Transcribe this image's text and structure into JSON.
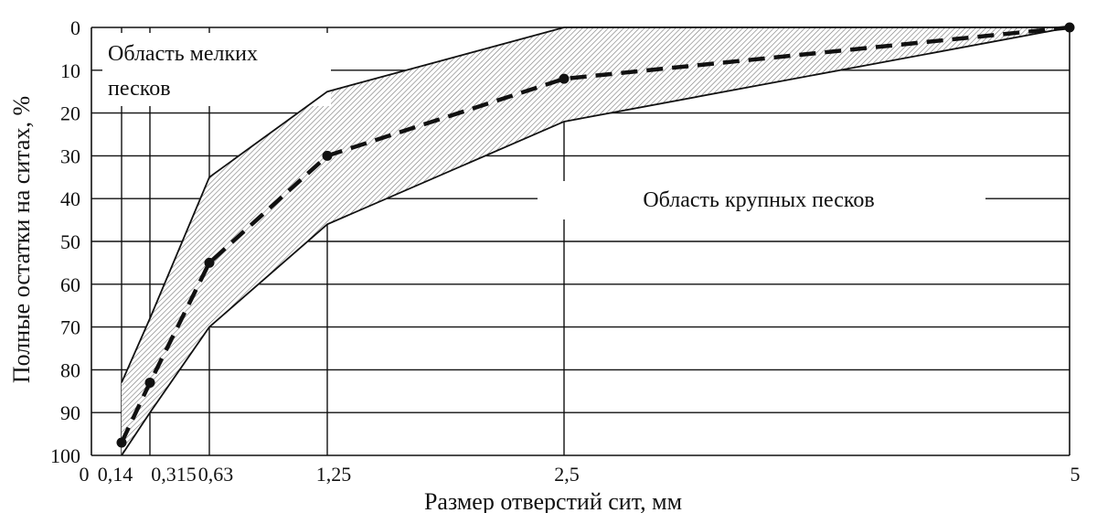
{
  "chart_data": {
    "type": "area",
    "title": "",
    "xlabel": "Размер отверстий сит, мм",
    "ylabel": "Полные остатки на ситах, %",
    "x_ticks": [
      "0",
      "0,14",
      "0,315",
      "0,63",
      "1,25",
      "2,5",
      "5"
    ],
    "y_ticks": [
      "0",
      "10",
      "20",
      "30",
      "40",
      "50",
      "60",
      "70",
      "80",
      "90",
      "100"
    ],
    "ylim": [
      0,
      100
    ],
    "y_inverted": true,
    "grid": true,
    "annotations": {
      "fine_sand": [
        "Область мелких",
        "песков"
      ],
      "coarse_sand": "Область крупных песков"
    },
    "series": [
      {
        "role": "upper-boundary",
        "style": "solid",
        "points": [
          {
            "x": 0.14,
            "y": 83
          },
          {
            "x": 0.315,
            "y": 68
          },
          {
            "x": 0.63,
            "y": 35
          },
          {
            "x": 1.25,
            "y": 15
          },
          {
            "x": 2.5,
            "y": 0
          },
          {
            "x": 5,
            "y": 0
          }
        ]
      },
      {
        "role": "lower-boundary",
        "style": "solid",
        "points": [
          {
            "x": 0.14,
            "y": 100
          },
          {
            "x": 0.315,
            "y": 90
          },
          {
            "x": 0.63,
            "y": 70
          },
          {
            "x": 1.25,
            "y": 46
          },
          {
            "x": 2.5,
            "y": 22
          },
          {
            "x": 5,
            "y": 0
          }
        ]
      },
      {
        "role": "sample",
        "style": "dashed",
        "points": [
          {
            "x": 0.14,
            "y": 97
          },
          {
            "x": 0.315,
            "y": 83
          },
          {
            "x": 0.63,
            "y": 55
          },
          {
            "x": 1.25,
            "y": 30
          },
          {
            "x": 2.5,
            "y": 12
          },
          {
            "x": 5,
            "y": 0
          }
        ]
      }
    ]
  },
  "colors": {
    "line": "#111111",
    "grid": "#111111",
    "hatch": "#555555"
  }
}
